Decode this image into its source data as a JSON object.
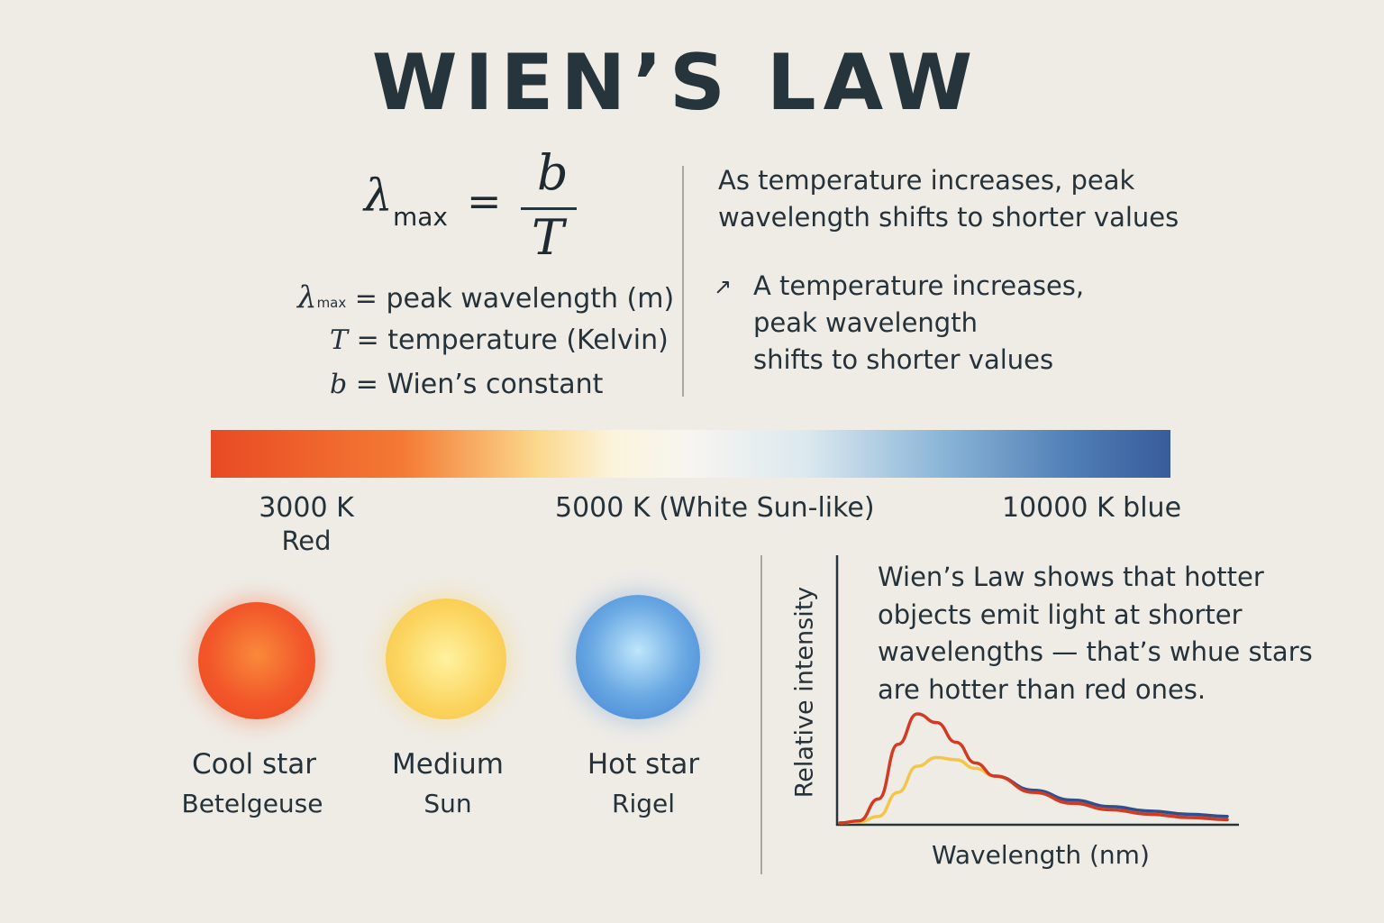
{
  "title": "WIEN’S LAW",
  "formula": {
    "lhs_symbol": "λ",
    "lhs_subscript": "max",
    "equals": "=",
    "numerator": "b",
    "denominator": "T"
  },
  "definitions": [
    {
      "symbol": "λ",
      "subscript": "max",
      "text": "= peak wavelength (m)"
    },
    {
      "symbol": "T",
      "subscript": "",
      "text": "= temperature (Kelvin)"
    },
    {
      "symbol": "b",
      "subscript": "",
      "text": "= Wien’s constant"
    }
  ],
  "description_top": [
    "As temperature increases, peak",
    "wavelength shifts to shorter values"
  ],
  "description_arrow": "↗",
  "description_second": [
    "A temperature increases,",
    "peak wavelength",
    "shifts to shorter values"
  ],
  "temperature_scale": {
    "colors": [
      "#e84a24",
      "#f47a34",
      "#fbd88c",
      "#f7f5f0",
      "#8cb6d8",
      "#385c9a"
    ],
    "labels": [
      {
        "value": "3000 K",
        "sub": "Red"
      },
      {
        "value": "5000 K (White  Sun-like)",
        "sub": ""
      },
      {
        "value": "10000 K blue",
        "sub": ""
      }
    ]
  },
  "stars": [
    {
      "type": "Cool star",
      "name": "Betelgeuse",
      "color": "#f2572a"
    },
    {
      "type": "Medium",
      "name": "Sun",
      "color": "#fbd35c"
    },
    {
      "type": "Hot star",
      "name": "Rigel",
      "color": "#5a97dc"
    }
  ],
  "graph_caption": [
    "Wien’s Law shows that hotter",
    "objects emit light at shorter",
    "wavelengths — that’s whue stars",
    "are hotter than red ones."
  ],
  "chart_data": {
    "type": "line",
    "title": "",
    "xlabel": "Wavelength (nm)",
    "ylabel": "Relative intensity",
    "grid": false,
    "series": [
      {
        "color": "#d23a22",
        "x": [
          0,
          0.05,
          0.1,
          0.15,
          0.2,
          0.25,
          0.3,
          0.35,
          0.4,
          0.5,
          0.6,
          0.7,
          0.8,
          0.9,
          1.0
        ],
        "values": [
          0,
          0.02,
          0.22,
          0.72,
          1.0,
          0.92,
          0.74,
          0.55,
          0.43,
          0.28,
          0.18,
          0.12,
          0.08,
          0.05,
          0.03
        ]
      },
      {
        "color": "#f3c64a",
        "x": [
          0,
          0.05,
          0.1,
          0.15,
          0.2,
          0.25,
          0.3,
          0.35,
          0.4,
          0.5,
          0.6,
          0.7,
          0.8,
          0.9,
          1.0
        ],
        "values": [
          0,
          0.01,
          0.06,
          0.28,
          0.52,
          0.6,
          0.58,
          0.5,
          0.43,
          0.3,
          0.2,
          0.14,
          0.09,
          0.06,
          0.04
        ]
      },
      {
        "color": "#2f4f8f",
        "x": [
          0.4,
          0.5,
          0.6,
          0.7,
          0.8,
          0.9,
          1.0
        ],
        "values": [
          0.43,
          0.3,
          0.21,
          0.15,
          0.11,
          0.08,
          0.06
        ]
      }
    ]
  }
}
